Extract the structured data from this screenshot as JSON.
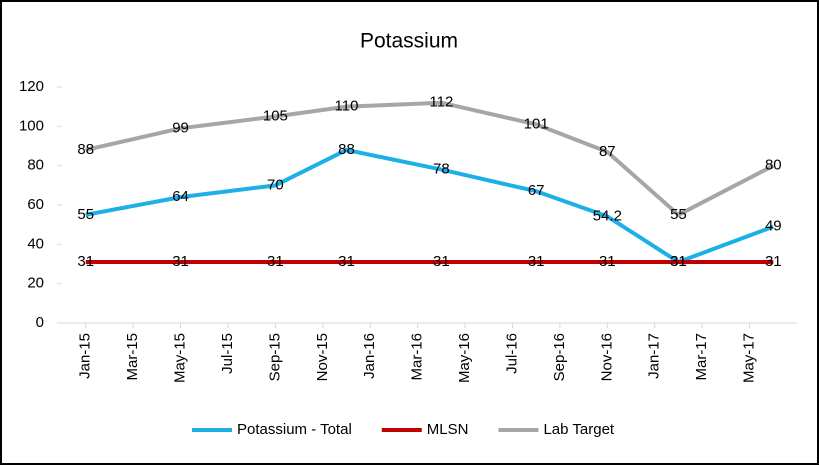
{
  "chart_data": {
    "type": "line",
    "title": "Potassium",
    "x": [
      "2015-01",
      "2015-05",
      "2015-09",
      "2015-12",
      "2016-04",
      "2016-08",
      "2016-11",
      "2017-02",
      "2017-06"
    ],
    "series": [
      {
        "name": "Potassium - Total",
        "color": "#1cb0e6",
        "values": [
          55,
          64,
          70,
          88,
          78,
          67,
          54.2,
          31,
          49
        ]
      },
      {
        "name": "MLSN",
        "color": "#c00000",
        "values": [
          31,
          31,
          31,
          31,
          31,
          31,
          31,
          31,
          31
        ]
      },
      {
        "name": "Lab Target",
        "color": "#a6a6a6",
        "values": [
          88,
          99,
          105,
          110,
          112,
          101,
          87,
          55,
          80
        ]
      }
    ],
    "xlim": [
      "2014-12",
      "2017-07"
    ],
    "xticks": [
      {
        "value": "2015-01",
        "label": "Jan-15"
      },
      {
        "value": "2015-03",
        "label": "Mar-15"
      },
      {
        "value": "2015-05",
        "label": "May-15"
      },
      {
        "value": "2015-07",
        "label": "Jul-15"
      },
      {
        "value": "2015-09",
        "label": "Sep-15"
      },
      {
        "value": "2015-11",
        "label": "Nov-15"
      },
      {
        "value": "2016-01",
        "label": "Jan-16"
      },
      {
        "value": "2016-03",
        "label": "Mar-16"
      },
      {
        "value": "2016-05",
        "label": "May-16"
      },
      {
        "value": "2016-07",
        "label": "Jul-16"
      },
      {
        "value": "2016-09",
        "label": "Sep-16"
      },
      {
        "value": "2016-11",
        "label": "Nov-16"
      },
      {
        "value": "2017-01",
        "label": "Jan-17"
      },
      {
        "value": "2017-03",
        "label": "Mar-17"
      },
      {
        "value": "2017-05",
        "label": "May-17"
      }
    ],
    "ylim": [
      0,
      120
    ],
    "yticks": [
      0,
      20,
      40,
      60,
      80,
      100,
      120
    ],
    "legend": "bottom"
  }
}
